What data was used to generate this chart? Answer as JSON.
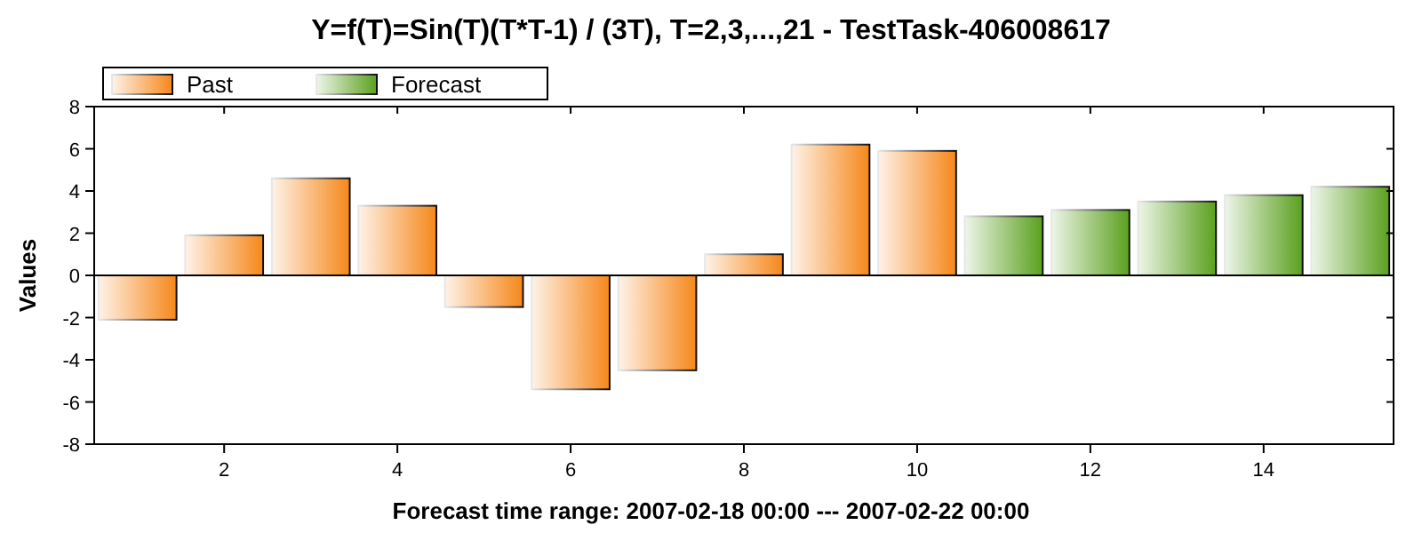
{
  "chart_data": {
    "type": "bar",
    "title": "Y=f(T)=Sin(T)(T*T-1) / (3T), T=2,3,...,21 - TestTask-406008617",
    "xlabel": "Forecast time range: 2007-02-18 00:00 --- 2007-02-22 00:00",
    "ylabel": "Values",
    "x": [
      1,
      2,
      3,
      4,
      5,
      6,
      7,
      8,
      9,
      10,
      11,
      12,
      13,
      14,
      15
    ],
    "series": [
      {
        "name": "Past",
        "color": "#f57f0a",
        "values": [
          -2.1,
          1.9,
          4.6,
          3.3,
          -1.5,
          -5.4,
          -4.5,
          1.0,
          6.2,
          5.9,
          null,
          null,
          null,
          null,
          null
        ]
      },
      {
        "name": "Forecast",
        "color": "#4f9a0f",
        "values": [
          null,
          null,
          null,
          null,
          null,
          null,
          null,
          null,
          null,
          null,
          2.8,
          3.1,
          3.5,
          3.8,
          4.2
        ]
      }
    ],
    "xlim": [
      0.5,
      15.5
    ],
    "xticks": [
      2,
      4,
      6,
      8,
      10,
      12,
      14
    ],
    "ylim": [
      -8,
      8
    ],
    "yticks": [
      -8,
      -6,
      -4,
      -2,
      0,
      2,
      4,
      6,
      8
    ],
    "legend": "top left"
  }
}
